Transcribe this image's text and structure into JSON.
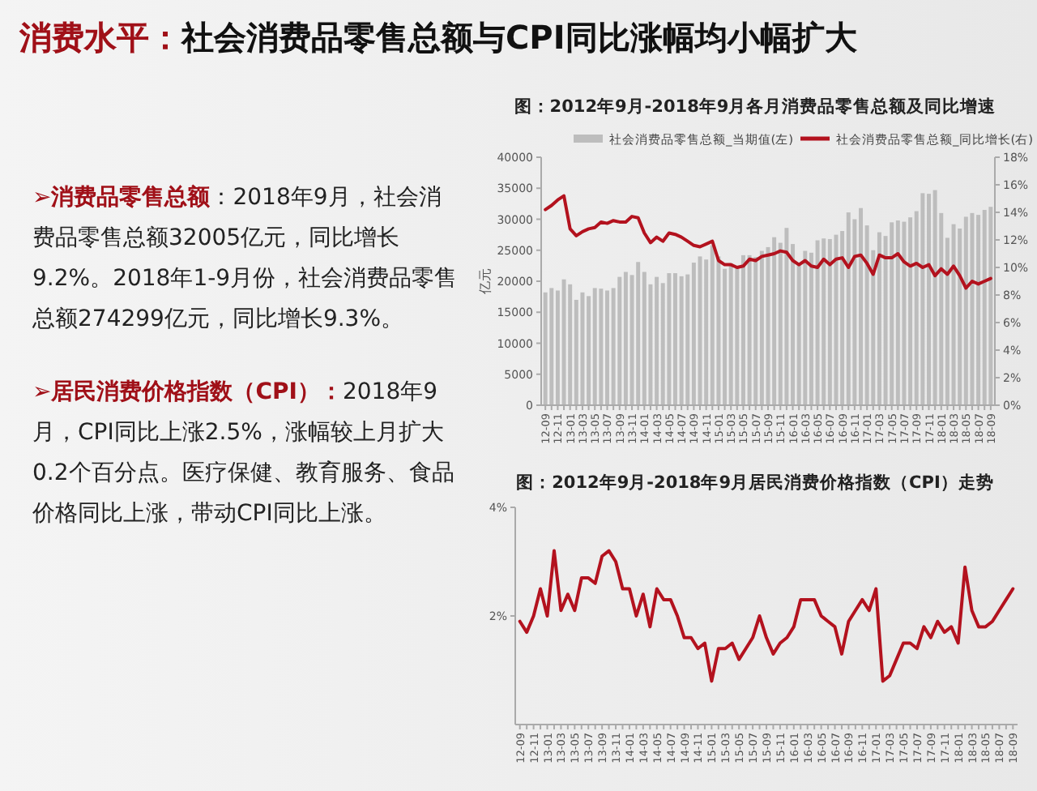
{
  "chart_data": [
    {
      "type": "other",
      "title": "消费水平：",
      "subtitle": "社会消费品零售总额与CPI同比涨幅均小幅扩大",
      "annotations": [
        "➢消费品零售总额",
        "：2018年9月，社会消费品零售总额32005亿元，同比增长9.2%。2018年1-9月份，社会消费品零售总额274299亿元，同比增长9.3%。",
        "➢居民消费价格指数（CPI）：",
        "2018年9月，CPI同比上涨2.5%，涨幅较上月扩大0.2个百分点。医疗保健、教育服务、食品价格同比上涨，带动CPI同比上涨。"
      ]
    },
    {
      "type": "bar",
      "title": "图：2012年9月-2018年9月各月消费品零售总额及同比增速",
      "ylabel": "亿元",
      "legend": "top",
      "categories": [
        "12-09",
        null,
        "12-11",
        null,
        "13-01",
        null,
        "13-03",
        null,
        "13-05",
        null,
        "13-07",
        null,
        "13-09",
        null,
        "13-11",
        null,
        "14-01",
        null,
        "14-03",
        null,
        "14-05",
        null,
        "14-07",
        null,
        "14-09",
        null,
        "14-11",
        null,
        "15-01",
        null,
        "15-03",
        null,
        "15-05",
        null,
        "15-07",
        null,
        "15-09",
        null,
        "15-11",
        null,
        "16-01",
        null,
        "16-03",
        null,
        "16-05",
        null,
        "16-07",
        null,
        "16-09",
        null,
        "16-11",
        null,
        "17-01",
        null,
        "17-03",
        null,
        "17-05",
        null,
        "17-07",
        null,
        "17-09",
        null,
        "17-11",
        null,
        "18-01",
        null,
        "18-03",
        null,
        "18-05",
        null,
        "18-07",
        null,
        "18-09"
      ],
      "ylim": [
        0,
        40000
      ],
      "yticks": [
        0,
        5000,
        10000,
        15000,
        20000,
        25000,
        30000,
        35000,
        40000
      ],
      "y2lim": [
        0,
        18
      ],
      "y2ticks": [
        {
          "value": 0,
          "label": "0%"
        },
        {
          "value": 2,
          "label": "2%"
        },
        {
          "value": 4,
          "label": "4%"
        },
        {
          "value": 6,
          "label": "6%"
        },
        {
          "value": 8,
          "label": "8%"
        },
        {
          "value": 10,
          "label": "10%"
        },
        {
          "value": 12,
          "label": "12%"
        },
        {
          "value": 14,
          "label": "14%"
        },
        {
          "value": 16,
          "label": "16%"
        },
        {
          "value": 18,
          "label": "18%"
        }
      ],
      "series": [
        {
          "name": "社会消费品零售总额_当期值(左)",
          "type": "bar",
          "color": "#bdbdbd",
          "values": [
            18200,
            18900,
            18500,
            20300,
            19500,
            17000,
            18200,
            17600,
            18900,
            18800,
            18500,
            18900,
            20700,
            21500,
            21000,
            23100,
            21500,
            19500,
            20700,
            19700,
            21300,
            21300,
            20800,
            21100,
            23000,
            24000,
            23500,
            25800,
            24000,
            22000,
            22900,
            22400,
            24200,
            24200,
            23900,
            24900,
            25500,
            27100,
            26200,
            28600,
            26000,
            23000,
            24900,
            24600,
            26600,
            26900,
            26800,
            27500,
            28100,
            31100,
            30000,
            31800,
            29000,
            25000,
            27900,
            27300,
            29500,
            29800,
            29600,
            30300,
            31300,
            34200,
            34100,
            34700,
            31000,
            27000,
            29200,
            28500,
            30400,
            31000,
            30700,
            31500,
            32000
          ]
        },
        {
          "name": "社会消费品零售总额_同比增长(右)",
          "type": "line",
          "axis": "y2",
          "color": "#b3121e",
          "values": [
            14.2,
            14.5,
            14.9,
            15.2,
            12.8,
            12.3,
            12.6,
            12.8,
            12.9,
            13.3,
            13.2,
            13.4,
            13.3,
            13.3,
            13.7,
            13.6,
            12.5,
            11.8,
            12.2,
            11.9,
            12.5,
            12.4,
            12.2,
            11.9,
            11.6,
            11.5,
            11.7,
            11.9,
            10.5,
            10.2,
            10.2,
            10.0,
            10.1,
            10.6,
            10.5,
            10.8,
            10.9,
            11.0,
            11.2,
            11.1,
            10.5,
            10.2,
            10.5,
            10.1,
            10.0,
            10.6,
            10.2,
            10.6,
            10.7,
            10.0,
            10.8,
            10.9,
            10.3,
            9.5,
            10.9,
            10.7,
            10.7,
            11.0,
            10.4,
            10.1,
            10.3,
            10.0,
            10.2,
            9.4,
            9.9,
            9.5,
            10.1,
            9.4,
            8.5,
            9.0,
            8.8,
            9.0,
            9.2
          ]
        }
      ]
    },
    {
      "type": "line",
      "title": "图：2012年9月-2018年9月居民消费价格指数（CPI）走势",
      "color": "#b3121e",
      "categories": [
        "12-09",
        null,
        "12-11",
        null,
        "13-01",
        null,
        "13-03",
        null,
        "13-05",
        null,
        "13-07",
        null,
        "13-09",
        null,
        "13-11",
        null,
        "14-01",
        null,
        "14-03",
        null,
        "14-05",
        null,
        "14-07",
        null,
        "14-09",
        null,
        "14-11",
        null,
        "15-01",
        null,
        "15-03",
        null,
        "15-05",
        null,
        "15-07",
        null,
        "15-09",
        null,
        "15-11",
        null,
        "16-01",
        null,
        "16-03",
        null,
        "16-05",
        null,
        "16-07",
        null,
        "16-09",
        null,
        "16-11",
        null,
        "17-01",
        null,
        "17-03",
        null,
        "17-05",
        null,
        "17-07",
        null,
        "17-09",
        null,
        "17-11",
        null,
        "18-01",
        null,
        "18-03",
        null,
        "18-05",
        null,
        "18-07",
        null,
        "18-09"
      ],
      "ylim": [
        0,
        4
      ],
      "yticks": [
        {
          "value": 2,
          "label": "2%"
        },
        {
          "value": 4,
          "label": "4%"
        }
      ],
      "values": [
        1.9,
        1.7,
        2.0,
        2.5,
        2.0,
        3.2,
        2.1,
        2.4,
        2.1,
        2.7,
        2.7,
        2.6,
        3.1,
        3.2,
        3.0,
        2.5,
        2.5,
        2.0,
        2.4,
        1.8,
        2.5,
        2.3,
        2.3,
        2.0,
        1.6,
        1.6,
        1.4,
        1.5,
        0.8,
        1.4,
        1.4,
        1.5,
        1.2,
        1.4,
        1.6,
        2.0,
        1.6,
        1.3,
        1.5,
        1.6,
        1.8,
        2.3,
        2.3,
        2.3,
        2.0,
        1.9,
        1.8,
        1.3,
        1.9,
        2.1,
        2.3,
        2.1,
        2.5,
        0.8,
        0.9,
        1.2,
        1.5,
        1.5,
        1.4,
        1.8,
        1.6,
        1.9,
        1.7,
        1.8,
        1.5,
        2.9,
        2.1,
        1.8,
        1.8,
        1.9,
        2.1,
        2.3,
        2.5
      ]
    }
  ]
}
